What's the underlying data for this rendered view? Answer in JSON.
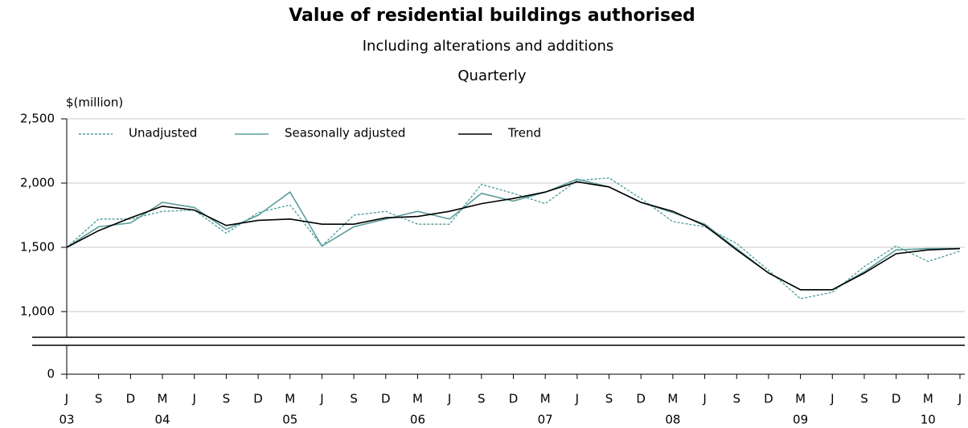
{
  "chart_data": {
    "type": "line",
    "title": "Value of residential buildings authorised",
    "subtitle": "Including alterations and additions",
    "frequency": "Quarterly",
    "y_label": "$(million)",
    "categories": [
      "J",
      "S",
      "D",
      "M",
      "J",
      "S",
      "D",
      "M",
      "J",
      "S",
      "D",
      "M",
      "J",
      "S",
      "D",
      "M",
      "J",
      "S",
      "D",
      "M",
      "J",
      "S",
      "D",
      "M",
      "J",
      "S",
      "D",
      "M",
      "J"
    ],
    "category_years": [
      "03",
      null,
      null,
      "04",
      null,
      null,
      null,
      "05",
      null,
      null,
      null,
      "06",
      null,
      null,
      null,
      "07",
      null,
      null,
      null,
      "08",
      null,
      null,
      null,
      "09",
      null,
      null,
      null,
      "10",
      null
    ],
    "series": [
      {
        "name": "Unadjusted",
        "color": "#4a9a9a",
        "style": "dotted",
        "values": [
          1500,
          1720,
          1720,
          1780,
          1790,
          1610,
          1770,
          1830,
          1510,
          1750,
          1780,
          1680,
          1680,
          1990,
          1920,
          1840,
          2020,
          2040,
          1880,
          1700,
          1660,
          1530,
          1320,
          1100,
          1150,
          1350,
          1510,
          1390,
          1470
        ]
      },
      {
        "name": "Seasonally adjusted",
        "color": "#5c9e9e",
        "style": "solid",
        "values": [
          1500,
          1660,
          1690,
          1850,
          1810,
          1640,
          1750,
          1930,
          1510,
          1660,
          1720,
          1780,
          1720,
          1920,
          1860,
          1930,
          2030,
          1970,
          1850,
          1770,
          1680,
          1490,
          1300,
          1170,
          1170,
          1310,
          1480,
          1490,
          1490
        ]
      },
      {
        "name": "Trend",
        "color": "#000000",
        "style": "solid",
        "values": [
          1500,
          1630,
          1730,
          1820,
          1790,
          1670,
          1710,
          1720,
          1680,
          1680,
          1730,
          1740,
          1780,
          1840,
          1880,
          1930,
          2010,
          1970,
          1850,
          1780,
          1670,
          1480,
          1300,
          1170,
          1170,
          1300,
          1450,
          1480,
          1490
        ]
      }
    ],
    "ylim": [
      800,
      2500
    ],
    "yticks": [
      {
        "value": 0,
        "label": "0"
      },
      {
        "value": 1000,
        "label": "1,000"
      },
      {
        "value": 1500,
        "label": "1,500"
      },
      {
        "value": 2000,
        "label": "2,000"
      },
      {
        "value": 2500,
        "label": "2,500"
      }
    ],
    "axis_break": true,
    "grid": true,
    "legend": "top-left"
  }
}
